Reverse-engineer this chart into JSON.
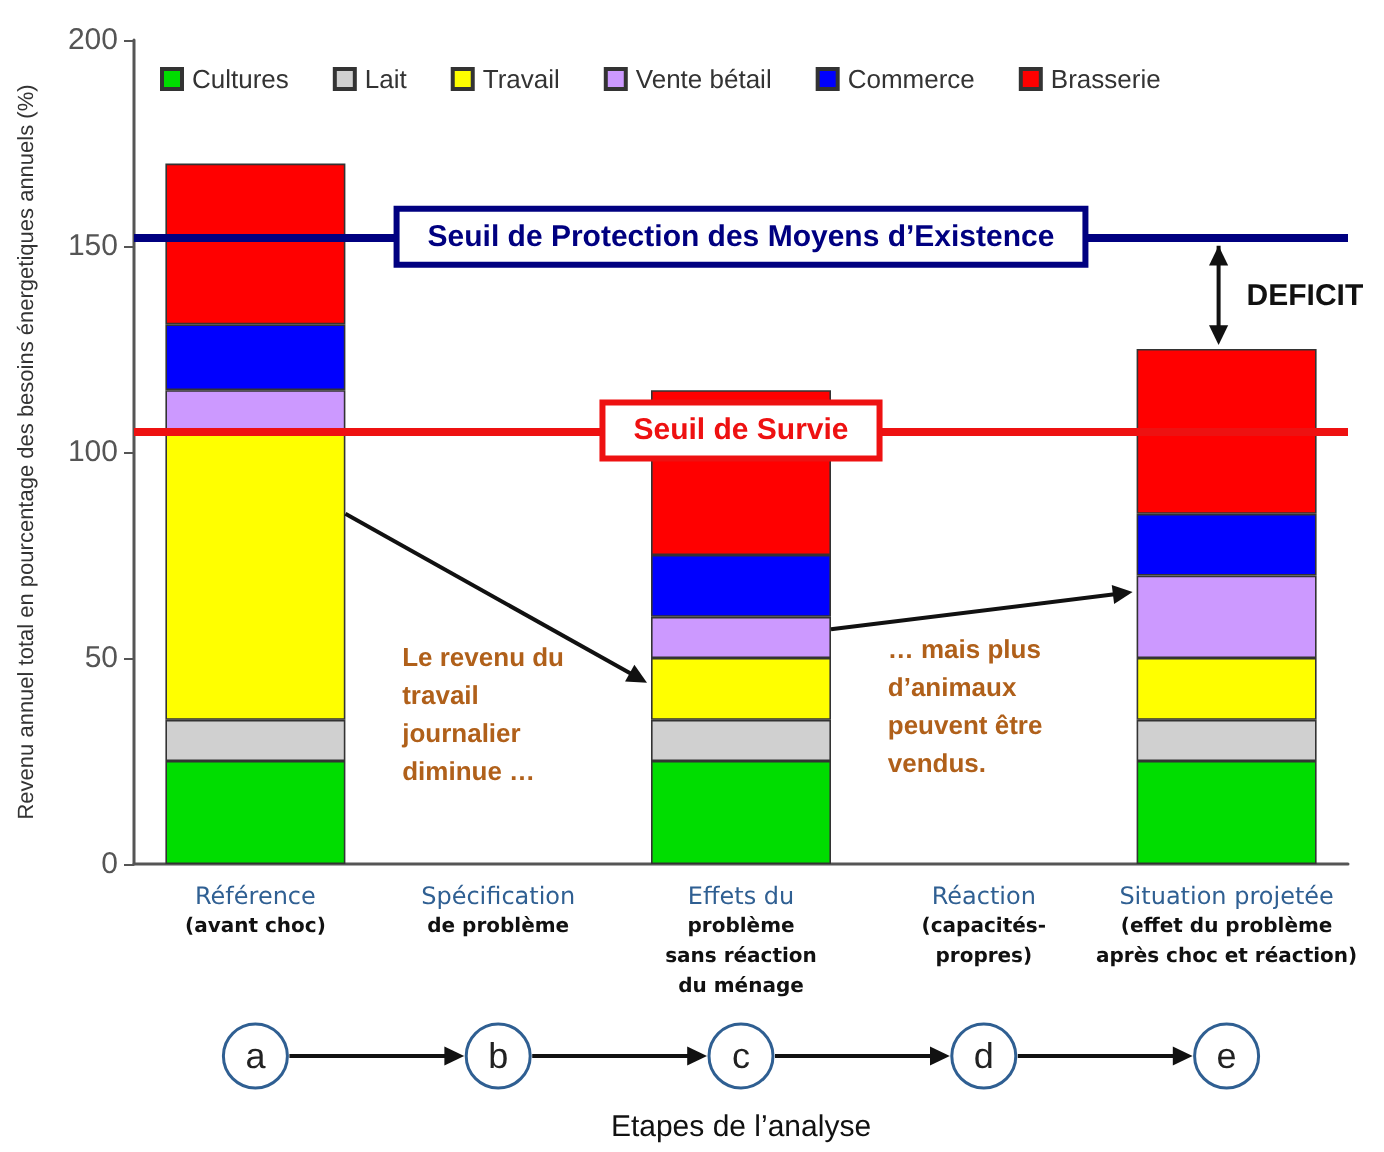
{
  "chart_data": {
    "type": "bar",
    "stacked": true,
    "categories": [
      "Référence\n(avant choc)",
      "Spécification\nde problème",
      "Effets du\nproblème\nsans réaction\ndu ménage",
      "Réaction\n(capacités-\npropres)",
      "Situation projetée\n(effet du problème\naprès choc et réaction)"
    ],
    "series": [
      {
        "name": "Cultures",
        "color": "#00dd00",
        "values": [
          25,
          null,
          25,
          null,
          25
        ]
      },
      {
        "name": "Lait",
        "color": "#d0d0d0",
        "values": [
          10,
          null,
          10,
          null,
          10
        ]
      },
      {
        "name": "Travail",
        "color": "#ffff00",
        "values": [
          70,
          null,
          15,
          null,
          15
        ]
      },
      {
        "name": "Vente bétail",
        "color": "#cc99ff",
        "values": [
          10,
          null,
          10,
          null,
          20
        ]
      },
      {
        "name": "Commerce",
        "color": "#0000ff",
        "values": [
          16,
          null,
          15,
          null,
          15
        ]
      },
      {
        "name": "Brasserie",
        "color": "#ff0000",
        "values": [
          39,
          null,
          40,
          null,
          40
        ]
      }
    ],
    "ylim": [
      0,
      200
    ],
    "yticks": [
      0,
      50,
      100,
      150,
      200
    ],
    "xlabel": "Etapes de l’analyse",
    "ylabel": "Revenu annuel total en pourcentage des besoins énergetiques annuels (%)",
    "ref_lines": [
      {
        "axis": "y",
        "value": 152,
        "label": "Seuil de Protection des Moyens d’Existence",
        "color": "#000080"
      },
      {
        "axis": "y",
        "value": 105,
        "label": "Seuil de Survie",
        "color": "#ee1111"
      }
    ],
    "annotations": [
      "Le revenu du\ntravail\njournalier\ndiminue …",
      "… mais plus\nd’animaux\npeuvent être\nvendus.",
      "DEFICIT",
      "a",
      "b",
      "c",
      "d",
      "e"
    ],
    "legend": "top",
    "grid": false
  }
}
